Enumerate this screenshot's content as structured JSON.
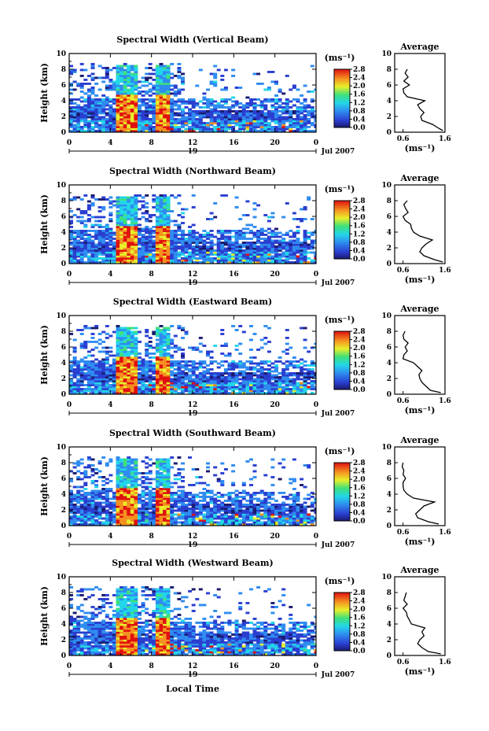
{
  "figure": {
    "xlabel": "Local Time",
    "ylabel": "Height (km)",
    "date_label": "Jul 2007",
    "day_label": "19",
    "unit_label": "(ms⁻¹)",
    "average_title": "Average",
    "average_unit": "(ms⁻¹)"
  },
  "chart_data": [
    {
      "type": "heatmap",
      "title": "Spectral Width (Vertical Beam)",
      "xlabel": "Local Time",
      "ylabel": "Height (km)",
      "x_ticks": [
        "0",
        "4",
        "8",
        "12",
        "16",
        "20",
        "0"
      ],
      "y_ticks": [
        "0",
        "2",
        "4",
        "6",
        "8",
        "10"
      ],
      "xlim": [
        0,
        24
      ],
      "ylim": [
        0,
        10
      ],
      "colorbar": {
        "label": "(ms⁻¹)",
        "ticks": [
          "0.0",
          "0.4",
          "0.8",
          "1.2",
          "1.6",
          "2.0",
          "2.4",
          "2.8"
        ],
        "range": [
          0,
          2.8
        ]
      },
      "colorbar_min": 0,
      "colorbar_max": 2.8,
      "average_profile": {
        "title": "Average",
        "xlabel": "(ms⁻¹)",
        "x_ticks": [
          "0.6",
          "1.6"
        ],
        "xlim": [
          0.4,
          1.6
        ],
        "height": [
          0.2,
          0.5,
          1.0,
          1.5,
          2.0,
          2.5,
          3.0,
          3.5,
          4.0,
          4.5,
          5.0,
          5.5,
          6.0,
          6.5,
          7.0,
          7.5,
          8.0
        ],
        "width": [
          1.55,
          1.45,
          1.3,
          1.05,
          1.02,
          1.1,
          1.0,
          0.95,
          1.12,
          0.7,
          0.62,
          0.6,
          0.75,
          0.62,
          0.72,
          0.65,
          0.7
        ]
      }
    },
    {
      "type": "heatmap",
      "title": "Spectral Width (Northward Beam)",
      "xlabel": "Local Time",
      "ylabel": "Height (km)",
      "x_ticks": [
        "0",
        "4",
        "8",
        "12",
        "16",
        "20",
        "0"
      ],
      "y_ticks": [
        "0",
        "2",
        "4",
        "6",
        "8",
        "10"
      ],
      "xlim": [
        0,
        24
      ],
      "ylim": [
        0,
        10
      ],
      "colorbar": {
        "label": "(ms⁻¹)",
        "ticks": [
          "0.0",
          "0.4",
          "0.8",
          "1.2",
          "1.6",
          "2.0",
          "2.4",
          "2.8"
        ],
        "range": [
          0,
          2.8
        ]
      },
      "colorbar_min": 0,
      "colorbar_max": 2.8,
      "average_profile": {
        "title": "Average",
        "xlabel": "(ms⁻¹)",
        "x_ticks": [
          "0.6",
          "1.6"
        ],
        "xlim": [
          0.4,
          1.6
        ],
        "height": [
          0.2,
          0.5,
          1.0,
          1.5,
          2.0,
          2.5,
          3.0,
          3.5,
          4.0,
          4.5,
          5.0,
          5.5,
          6.0,
          6.5,
          7.0,
          7.5,
          8.0
        ],
        "width": [
          1.55,
          1.35,
          1.1,
          1.0,
          1.05,
          1.15,
          1.3,
          1.0,
          0.85,
          0.8,
          0.78,
          0.65,
          0.6,
          0.72,
          0.66,
          0.62,
          0.7
        ]
      }
    },
    {
      "type": "heatmap",
      "title": "Spectral Width (Eastward Beam)",
      "xlabel": "Local Time",
      "ylabel": "Height (km)",
      "x_ticks": [
        "0",
        "4",
        "8",
        "12",
        "16",
        "20",
        "0"
      ],
      "y_ticks": [
        "0",
        "2",
        "4",
        "6",
        "8",
        "10"
      ],
      "xlim": [
        0,
        24
      ],
      "ylim": [
        0,
        10
      ],
      "colorbar": {
        "label": "(ms⁻¹)",
        "ticks": [
          "0.0",
          "0.4",
          "0.8",
          "1.2",
          "1.6",
          "2.0",
          "2.4",
          "2.8"
        ],
        "range": [
          0,
          2.8
        ]
      },
      "colorbar_min": 0,
      "colorbar_max": 2.8,
      "average_profile": {
        "title": "Average",
        "xlabel": "(ms⁻¹)",
        "x_ticks": [
          "0.6",
          "1.6"
        ],
        "xlim": [
          0.4,
          1.6
        ],
        "height": [
          0.2,
          0.5,
          1.0,
          1.5,
          2.0,
          2.5,
          3.0,
          3.5,
          4.0,
          4.5,
          5.0,
          5.5,
          6.0,
          6.5,
          7.0,
          7.5,
          8.0
        ],
        "width": [
          1.5,
          1.25,
          1.15,
          1.05,
          1.0,
          0.98,
          1.05,
          0.95,
          0.85,
          0.6,
          0.62,
          0.7,
          0.65,
          0.72,
          0.62,
          0.6,
          0.65
        ]
      }
    },
    {
      "type": "heatmap",
      "title": "Spectral Width (Southward Beam)",
      "xlabel": "Local Time",
      "ylabel": "Height (km)",
      "x_ticks": [
        "0",
        "4",
        "8",
        "12",
        "16",
        "20",
        "0"
      ],
      "y_ticks": [
        "0",
        "2",
        "4",
        "6",
        "8",
        "10"
      ],
      "xlim": [
        0,
        24
      ],
      "ylim": [
        0,
        10
      ],
      "colorbar": {
        "label": "(ms⁻¹)",
        "ticks": [
          "0.0",
          "0.4",
          "0.8",
          "1.2",
          "1.6",
          "2.0",
          "2.4",
          "2.8"
        ],
        "range": [
          0,
          2.8
        ]
      },
      "colorbar_min": 0,
      "colorbar_max": 2.8,
      "average_profile": {
        "title": "Average",
        "xlabel": "(ms⁻¹)",
        "x_ticks": [
          "0.6",
          "1.6"
        ],
        "xlim": [
          0.4,
          1.6
        ],
        "height": [
          0.2,
          0.5,
          1.0,
          1.5,
          2.0,
          2.5,
          3.0,
          3.5,
          4.0,
          4.5,
          5.0,
          5.5,
          6.0,
          6.5,
          7.0,
          7.5,
          8.0
        ],
        "width": [
          1.45,
          1.2,
          0.95,
          0.9,
          1.0,
          1.1,
          1.35,
          0.85,
          0.7,
          0.62,
          0.6,
          0.6,
          0.66,
          0.6,
          0.62,
          0.58,
          0.6
        ]
      }
    },
    {
      "type": "heatmap",
      "title": "Spectral Width (Westward Beam)",
      "xlabel": "Local Time",
      "ylabel": "Height (km)",
      "x_ticks": [
        "0",
        "4",
        "8",
        "12",
        "16",
        "20",
        "0"
      ],
      "y_ticks": [
        "0",
        "2",
        "4",
        "6",
        "8",
        "10"
      ],
      "xlim": [
        0,
        24
      ],
      "ylim": [
        0,
        10
      ],
      "colorbar": {
        "label": "(ms⁻¹)",
        "ticks": [
          "0.0",
          "0.4",
          "0.8",
          "1.2",
          "1.6",
          "2.0",
          "2.4",
          "2.8"
        ],
        "range": [
          0,
          2.8
        ]
      },
      "colorbar_min": 0,
      "colorbar_max": 2.8,
      "average_profile": {
        "title": "Average",
        "xlabel": "(ms⁻¹)",
        "x_ticks": [
          "0.6",
          "1.6"
        ],
        "xlim": [
          0.4,
          1.6
        ],
        "height": [
          0.2,
          0.5,
          1.0,
          1.5,
          2.0,
          2.5,
          3.0,
          3.5,
          4.0,
          4.5,
          5.0,
          5.5,
          6.0,
          6.5,
          7.0,
          7.5,
          8.0
        ],
        "width": [
          1.5,
          1.2,
          1.05,
          0.95,
          1.0,
          1.1,
          1.05,
          1.12,
          0.8,
          0.75,
          0.7,
          0.68,
          0.6,
          0.7,
          0.62,
          0.65,
          0.68
        ]
      }
    }
  ]
}
